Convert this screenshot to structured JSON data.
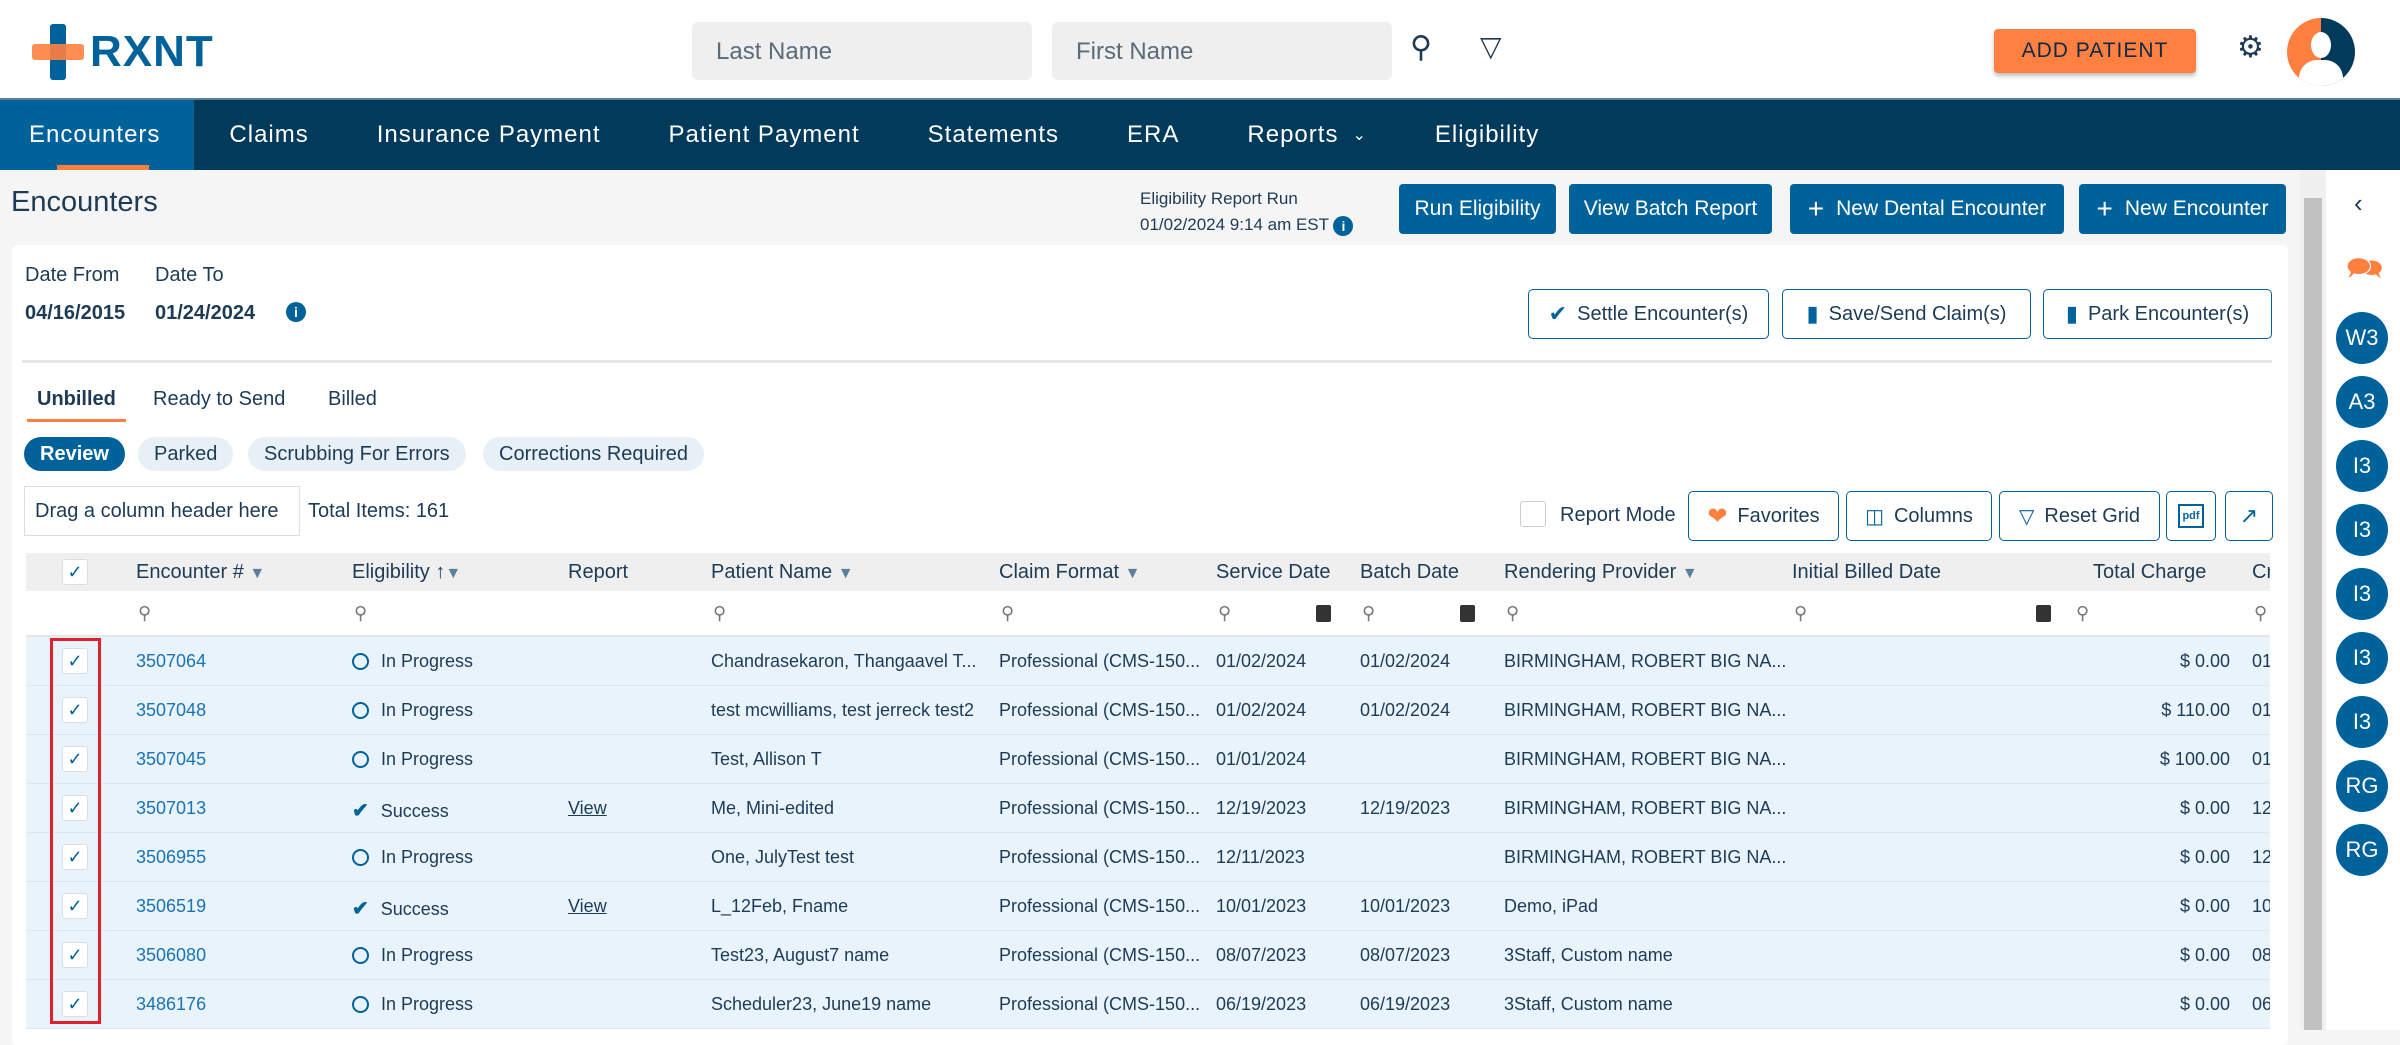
{
  "header": {
    "logo_text": "RXNT",
    "last_name_placeholder": "Last Name",
    "first_name_placeholder": "First Name",
    "add_patient": "ADD PATIENT"
  },
  "nav": {
    "items": [
      "Encounters",
      "Claims",
      "Insurance Payment",
      "Patient Payment",
      "Statements",
      "ERA",
      "Reports",
      "Eligibility"
    ],
    "active": "Encounters"
  },
  "page": {
    "title": "Encounters",
    "eligibility_run_label": "Eligibility Report Run",
    "eligibility_run_time": "01/02/2024 9:14 am EST",
    "buttons": {
      "run_eligibility": "Run Eligibility",
      "view_batch_report": "View Batch Report",
      "new_dental_encounter": "New Dental Encounter",
      "new_encounter": "New Encounter"
    }
  },
  "filters": {
    "date_from_label": "Date From",
    "date_from": "04/16/2015",
    "date_to_label": "Date To",
    "date_to": "01/24/2024",
    "settle": "Settle Encounter(s)",
    "save_send": "Save/Send Claim(s)",
    "park": "Park Encounter(s)"
  },
  "tabs": [
    "Unbilled",
    "Ready to Send",
    "Billed"
  ],
  "chips": [
    "Review",
    "Parked",
    "Scrubbing For Errors",
    "Corrections Required"
  ],
  "toolbar": {
    "drag_hint": "Drag a column header here",
    "total_items": "Total Items: 161",
    "report_mode": "Report Mode",
    "favorites": "Favorites",
    "columns": "Columns",
    "reset_grid": "Reset Grid",
    "pdf": "pdf"
  },
  "grid": {
    "columns": [
      "Encounter #",
      "Eligibility",
      "Report",
      "Patient Name",
      "Claim Format",
      "Service Date",
      "Batch Date",
      "Rendering Provider",
      "Initial Billed Date",
      "Total Charge",
      "Cr"
    ],
    "rows": [
      {
        "enc": "3507064",
        "elig": "In Progress",
        "report": "",
        "patient": "Chandrasekaron, Thangaavel T...",
        "format": "Professional (CMS-150...",
        "service": "01/02/2024",
        "batch": "01/02/2024",
        "provider": "BIRMINGHAM, ROBERT BIG NA...",
        "billed": "",
        "charge": "$ 0.00",
        "cr": "01",
        "checked": true
      },
      {
        "enc": "3507048",
        "elig": "In Progress",
        "report": "",
        "patient": "test mcwilliams, test jerreck test2",
        "format": "Professional (CMS-150...",
        "service": "01/02/2024",
        "batch": "01/02/2024",
        "provider": "BIRMINGHAM, ROBERT BIG NA...",
        "billed": "",
        "charge": "$ 110.00",
        "cr": "01",
        "checked": true
      },
      {
        "enc": "3507045",
        "elig": "In Progress",
        "report": "",
        "patient": "Test, Allison T",
        "format": "Professional (CMS-150...",
        "service": "01/01/2024",
        "batch": "",
        "provider": "BIRMINGHAM, ROBERT BIG NA...",
        "billed": "",
        "charge": "$ 100.00",
        "cr": "01",
        "checked": true
      },
      {
        "enc": "3507013",
        "elig": "Success",
        "report": "View",
        "patient": "Me, Mini-edited",
        "format": "Professional (CMS-150...",
        "service": "12/19/2023",
        "batch": "12/19/2023",
        "provider": "BIRMINGHAM, ROBERT BIG NA...",
        "billed": "",
        "charge": "$ 0.00",
        "cr": "12",
        "checked": true
      },
      {
        "enc": "3506955",
        "elig": "In Progress",
        "report": "",
        "patient": "One, JulyTest test",
        "format": "Professional (CMS-150...",
        "service": "12/11/2023",
        "batch": "",
        "provider": "BIRMINGHAM, ROBERT BIG NA...",
        "billed": "",
        "charge": "$ 0.00",
        "cr": "12",
        "checked": true
      },
      {
        "enc": "3506519",
        "elig": "Success",
        "report": "View",
        "patient": "L_12Feb, Fname",
        "format": "Professional (CMS-150...",
        "service": "10/01/2023",
        "batch": "10/01/2023",
        "provider": "Demo, iPad",
        "billed": "",
        "charge": "$ 0.00",
        "cr": "10",
        "checked": true
      },
      {
        "enc": "3506080",
        "elig": "In Progress",
        "report": "",
        "patient": "Test23, August7 name",
        "format": "Professional (CMS-150...",
        "service": "08/07/2023",
        "batch": "08/07/2023",
        "provider": "3Staff, Custom name",
        "billed": "",
        "charge": "$ 0.00",
        "cr": "08",
        "checked": true
      },
      {
        "enc": "3486176",
        "elig": "In Progress",
        "report": "",
        "patient": "Scheduler23, June19 name",
        "format": "Professional (CMS-150...",
        "service": "06/19/2023",
        "batch": "06/19/2023",
        "provider": "3Staff, Custom name",
        "billed": "",
        "charge": "$ 0.00",
        "cr": "06",
        "checked": true
      }
    ]
  },
  "right_sidebar": {
    "bubbles": [
      "W3",
      "A3",
      "I3",
      "I3",
      "I3",
      "I3",
      "I3",
      "RG",
      "RG"
    ]
  },
  "colors": {
    "brand_blue": "#00629b",
    "nav_bg": "#023a5c",
    "accent_orange": "#ff7f3f",
    "row_bg": "#e8f3fc",
    "selection_outline": "#e0202a"
  }
}
